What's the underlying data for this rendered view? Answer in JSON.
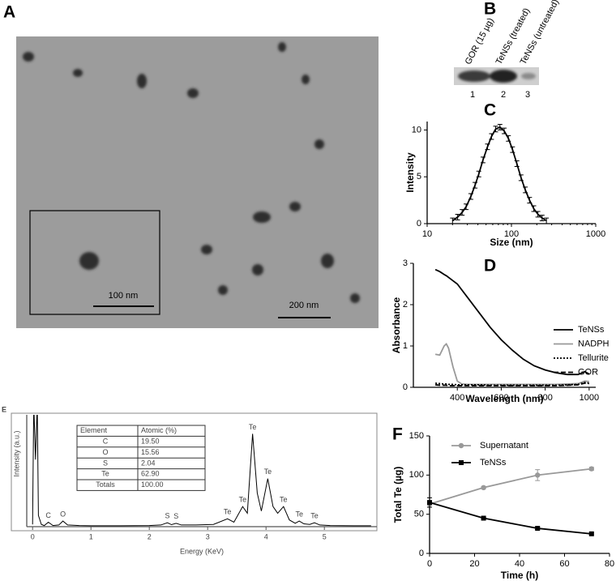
{
  "figure": {
    "A": {
      "panel_label": "A",
      "scale_bar": "200 nm",
      "inset_scale_bar": "100 nm"
    },
    "B": {
      "panel_label": "B",
      "lanes": [
        {
          "label": "GOR (15 µg)",
          "number": "1"
        },
        {
          "label": "TeNSs (treated)",
          "number": "2"
        },
        {
          "label": "TeNSs (untreated)",
          "number": "3"
        }
      ]
    }
  },
  "chart_data": [
    {
      "type": "line",
      "panel_label": "C",
      "xlabel": "Size (nm)",
      "ylabel": "Intensity",
      "xscale": "log",
      "xlim": [
        10,
        1000
      ],
      "xticks": [
        10,
        100,
        1000
      ],
      "ylim": [
        0,
        10.9
      ],
      "yticks": [
        0,
        5,
        10
      ],
      "x": [
        20,
        23,
        26,
        29,
        33,
        37,
        41,
        46,
        52,
        58,
        65,
        73,
        82,
        92,
        103,
        116,
        130,
        146,
        164,
        184,
        206,
        231,
        260
      ],
      "series": [
        {
          "color": "#000000",
          "values": [
            0.3,
            0.7,
            1.2,
            1.8,
            2.9,
            4.1,
            5.3,
            6.8,
            8.2,
            9.3,
            10.1,
            10.3,
            9.9,
            9.1,
            7.9,
            6.4,
            4.9,
            3.6,
            2.5,
            1.6,
            1.0,
            0.6,
            0.3
          ],
          "errors": [
            0.3,
            0.3,
            0.3,
            0.3,
            0.3,
            0.3,
            0.3,
            0.3,
            0.3,
            0.3,
            0.3,
            0.3,
            0.3,
            0.3,
            0.3,
            0.3,
            0.3,
            0.3,
            0.3,
            0.3,
            0.3,
            0.3,
            0.3
          ]
        }
      ]
    },
    {
      "type": "line",
      "panel_label": "D",
      "xlabel": "Wavelength (nm)",
      "ylabel": "Absorbance",
      "xlim": [
        200,
        1030
      ],
      "xticks": [
        400,
        600,
        800,
        1000
      ],
      "ylim": [
        0,
        3
      ],
      "yticks": [
        0,
        1,
        2,
        3
      ],
      "legend": "right",
      "x": [
        300,
        320,
        340,
        350,
        360,
        380,
        400,
        420,
        450,
        500,
        550,
        600,
        650,
        700,
        750,
        800,
        850,
        900,
        950,
        980,
        1000
      ],
      "series": [
        {
          "name": "TeNSs",
          "color": "#000000",
          "dash": "solid",
          "values": [
            2.85,
            2.8,
            2.73,
            2.7,
            2.66,
            2.58,
            2.5,
            2.36,
            2.15,
            1.8,
            1.45,
            1.15,
            0.9,
            0.68,
            0.52,
            0.42,
            0.35,
            0.31,
            0.31,
            0.38,
            0.32
          ]
        },
        {
          "name": "NADPH",
          "color": "#999999",
          "dash": "solid",
          "values": [
            0.8,
            0.78,
            1.0,
            1.05,
            0.95,
            0.5,
            0.15,
            0.08,
            0.07,
            0.07,
            0.07,
            0.07,
            0.07,
            0.07,
            0.07,
            0.07,
            0.07,
            0.08,
            0.09,
            0.15,
            0.14
          ]
        },
        {
          "name": "Tellurite",
          "color": "#000000",
          "dash": "dotted",
          "values": [
            0.1,
            0.09,
            0.08,
            0.08,
            0.07,
            0.07,
            0.06,
            0.06,
            0.06,
            0.06,
            0.05,
            0.05,
            0.05,
            0.05,
            0.05,
            0.05,
            0.05,
            0.06,
            0.07,
            0.12,
            0.1
          ]
        },
        {
          "name": "GOR",
          "color": "#000000",
          "dash": "dashed",
          "values": [
            0.06,
            0.05,
            0.05,
            0.05,
            0.04,
            0.04,
            0.04,
            0.04,
            0.04,
            0.04,
            0.04,
            0.04,
            0.04,
            0.04,
            0.04,
            0.04,
            0.04,
            0.05,
            0.06,
            0.1,
            0.09
          ]
        }
      ]
    },
    {
      "type": "line",
      "panel_label": "E",
      "xlabel": "Energy (KeV)",
      "ylabel": "Intensity (a.u.)",
      "xlim": [
        -0.1,
        5.9
      ],
      "xticks": [
        0,
        1,
        2,
        3,
        4,
        5
      ],
      "ylim": [
        0,
        100
      ],
      "x": [
        0,
        0.02,
        0.05,
        0.08,
        0.1,
        0.15,
        0.2,
        0.27,
        0.35,
        0.45,
        0.52,
        0.6,
        0.8,
        1.0,
        1.5,
        2.0,
        2.2,
        2.31,
        2.38,
        2.46,
        2.55,
        2.8,
        3.1,
        3.34,
        3.45,
        3.6,
        3.68,
        3.77,
        3.85,
        3.92,
        4.03,
        4.12,
        4.2,
        4.3,
        4.4,
        4.5,
        4.57,
        4.65,
        4.75,
        4.83,
        4.92,
        5.1,
        5.5,
        5.8
      ],
      "series": [
        {
          "color": "#000000",
          "values": [
            2,
            110,
            60,
            110,
            10,
            2,
            1,
            4,
            1,
            1.5,
            5,
            1.5,
            1,
            0.8,
            0.8,
            1,
            1.5,
            3.5,
            1.8,
            3,
            1.5,
            1.5,
            2,
            7,
            4,
            18,
            12,
            83,
            30,
            14,
            43,
            18,
            12,
            18,
            6,
            3,
            5,
            2.5,
            2,
            3.5,
            1.5,
            1,
            0.8,
            0.8
          ]
        }
      ],
      "peak_labels": [
        {
          "label": "C",
          "x": 0.27
        },
        {
          "label": "O",
          "x": 0.52
        },
        {
          "label": "S",
          "x": 2.31
        },
        {
          "label": "S",
          "x": 2.46
        },
        {
          "label": "Te",
          "x": 3.34
        },
        {
          "label": "Te",
          "x": 3.6
        },
        {
          "label": "Te",
          "x": 3.77
        },
        {
          "label": "Te",
          "x": 4.03
        },
        {
          "label": "Te",
          "x": 4.3
        },
        {
          "label": "Te",
          "x": 4.57
        },
        {
          "label": "Te",
          "x": 4.83
        }
      ],
      "table": {
        "header": [
          "Element",
          "Atomic (%)"
        ],
        "rows": [
          [
            "C",
            "19.50"
          ],
          [
            "O",
            "15.56"
          ],
          [
            "S",
            "2.04"
          ],
          [
            "Te",
            "62.90"
          ],
          [
            "Totals",
            "100.00"
          ]
        ]
      }
    },
    {
      "type": "line",
      "panel_label": "F",
      "xlabel": "Time (h)",
      "ylabel": "Total Te (µg)",
      "xlim": [
        0,
        80
      ],
      "xticks": [
        0,
        20,
        40,
        60,
        80
      ],
      "ylim": [
        0,
        150
      ],
      "yticks": [
        0,
        50,
        100,
        150
      ],
      "legend": "upper left",
      "x": [
        0,
        24,
        48,
        72
      ],
      "series": [
        {
          "name": "Supernatant",
          "color": "#999999",
          "marker": "circle",
          "values": [
            63,
            84,
            100,
            108
          ],
          "errors": [
            0,
            1.5,
            7,
            2
          ]
        },
        {
          "name": "TeNSs",
          "color": "#000000",
          "marker": "square",
          "values": [
            65,
            45,
            32,
            25
          ],
          "errors": [
            6,
            1,
            1.5,
            1
          ]
        }
      ]
    }
  ]
}
